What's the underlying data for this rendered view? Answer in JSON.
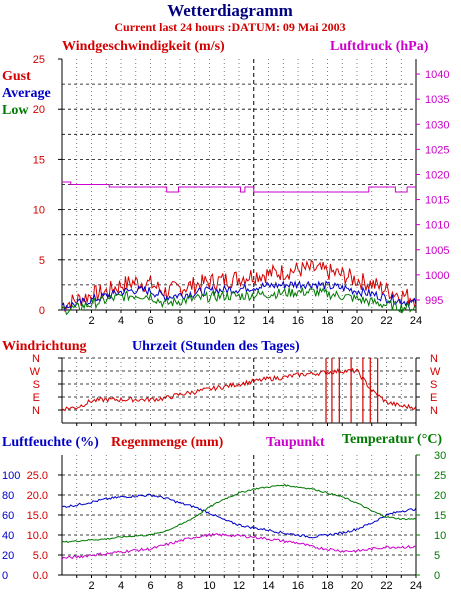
{
  "title": "Wetterdiagramm",
  "subtitle": "Current last 24 hours :DATUM: 09 Mai 2003",
  "colors": {
    "red": "#d40000",
    "blue": "#0000c8",
    "green": "#007a00",
    "magenta": "#cc00cc",
    "navy": "#000080",
    "black": "#000000"
  },
  "chart_data": [
    {
      "type": "line",
      "title": "",
      "left_axis_label": "Windgeschwindigkeit (m/s)",
      "right_axis_label": "Luftdruck (hPa)",
      "ylim": [
        0,
        25
      ],
      "yticks": [
        0,
        5,
        10,
        15,
        20,
        25
      ],
      "y2lim": [
        993,
        1043
      ],
      "y2ticks": [
        995,
        1000,
        1005,
        1010,
        1015,
        1020,
        1025,
        1030,
        1035,
        1040
      ],
      "xlim": [
        0,
        24
      ],
      "xticks": [
        2,
        4,
        6,
        8,
        10,
        12,
        14,
        16,
        18,
        20,
        22,
        24
      ],
      "grid": true,
      "legend": [
        "Gust",
        "Average",
        "Low"
      ],
      "series": [
        {
          "name": "Gust",
          "color": "#d40000",
          "noise": 0.9,
          "x": [
            0,
            1,
            2,
            3,
            4,
            5,
            6,
            7,
            8,
            9,
            10,
            11,
            12,
            13,
            14,
            15,
            16,
            17,
            18,
            19,
            20,
            21,
            22,
            23,
            24
          ],
          "y": [
            0.5,
            1.0,
            1.5,
            1.8,
            2.5,
            2.8,
            2.6,
            1.8,
            2.2,
            2.5,
            2.8,
            3.0,
            3.2,
            3.5,
            3.6,
            3.8,
            4.0,
            4.1,
            3.8,
            3.5,
            3.0,
            2.6,
            2.0,
            1.5,
            1.2
          ]
        },
        {
          "name": "Average",
          "color": "#0000c8",
          "noise": 0.45,
          "x": [
            0,
            1,
            2,
            3,
            4,
            5,
            6,
            7,
            8,
            9,
            10,
            11,
            12,
            13,
            14,
            15,
            16,
            17,
            18,
            19,
            20,
            21,
            22,
            23,
            24
          ],
          "y": [
            0.3,
            0.6,
            1.0,
            1.4,
            1.8,
            2.0,
            1.9,
            1.3,
            1.5,
            1.7,
            1.9,
            2.0,
            2.1,
            2.3,
            2.4,
            2.5,
            2.6,
            2.6,
            2.4,
            2.2,
            1.9,
            1.6,
            1.2,
            0.9,
            0.7
          ]
        },
        {
          "name": "Low",
          "color": "#007a00",
          "noise": 0.5,
          "x": [
            0,
            1,
            2,
            3,
            4,
            5,
            6,
            7,
            8,
            9,
            10,
            11,
            12,
            13,
            14,
            15,
            16,
            17,
            18,
            19,
            20,
            21,
            22,
            23,
            24
          ],
          "y": [
            0.0,
            0.2,
            0.6,
            1.0,
            1.3,
            1.5,
            1.4,
            0.6,
            0.9,
            1.1,
            1.3,
            1.4,
            1.4,
            1.5,
            1.6,
            1.7,
            1.8,
            1.8,
            1.6,
            1.4,
            1.1,
            0.8,
            0.5,
            0.3,
            0.2
          ]
        },
        {
          "name": "Luftdruck",
          "axis": "right",
          "color": "#cc00cc",
          "step": true,
          "x": [
            0,
            0.6,
            0.6,
            3.2,
            3.2,
            7.1,
            7.1,
            7.9,
            7.9,
            12.1,
            12.1,
            12.4,
            12.4,
            13.0,
            13.0,
            20.8,
            20.8,
            22.6,
            22.6,
            23.4,
            23.4,
            24
          ],
          "y": [
            1018.5,
            1018.5,
            1018.0,
            1018.0,
            1017.5,
            1017.5,
            1016.5,
            1016.5,
            1017.5,
            1017.5,
            1016.5,
            1016.5,
            1017.5,
            1017.5,
            1016.5,
            1016.5,
            1017.5,
            1017.5,
            1016.5,
            1016.5,
            1017.5,
            1017.5
          ]
        }
      ]
    },
    {
      "type": "line",
      "title": "",
      "left_axis_label": "Windrichtung",
      "xlabel": "Uhrzeit (Stunden des Tages)",
      "ylim": [
        0,
        5
      ],
      "y_categories": [
        "N",
        "W",
        "S",
        "E",
        "N"
      ],
      "xlim": [
        0,
        24
      ],
      "grid": true,
      "series": [
        {
          "name": "Windrichtung",
          "color": "#d40000",
          "noise": 0.18,
          "x": [
            0,
            1,
            2,
            3,
            4,
            5,
            6,
            7,
            8,
            9,
            10,
            11,
            12,
            13,
            14,
            15,
            16,
            17,
            18,
            19,
            20,
            21,
            22,
            23,
            24
          ],
          "y": [
            1.1,
            1.2,
            1.7,
            1.8,
            1.8,
            1.8,
            1.8,
            1.9,
            2.2,
            2.4,
            2.6,
            2.8,
            3.0,
            3.2,
            3.4,
            3.5,
            3.7,
            3.8,
            3.9,
            4.0,
            4.0,
            2.5,
            1.6,
            1.3,
            1.2
          ],
          "spikes": [
            17.9,
            18.3,
            18.8,
            19.6,
            20.4,
            20.9,
            21.4
          ]
        }
      ]
    },
    {
      "type": "line",
      "title": "",
      "left_axis_labels": [
        "Luftfeuchte (%)",
        "Regenmenge (mm)",
        "Taupunkt"
      ],
      "right_axis_label": "Temperatur (°C)",
      "ylim": [
        0,
        120
      ],
      "yticks": [
        0,
        20,
        40,
        60,
        80,
        100
      ],
      "y2lim": [
        0,
        30
      ],
      "y2ticks": [
        0,
        5,
        10,
        15,
        20,
        25,
        30
      ],
      "rain_ticks": [
        "0.0",
        "5.0",
        "10.0",
        "15.0",
        "20.0",
        "25.0"
      ],
      "xlim": [
        0,
        24
      ],
      "xticks": [
        2,
        4,
        6,
        8,
        10,
        12,
        14,
        16,
        18,
        20,
        22,
        24
      ],
      "grid": true,
      "series": [
        {
          "name": "Luftfeuchte",
          "color": "#0000c8",
          "noise": 1.2,
          "x": [
            0,
            1,
            2,
            3,
            4,
            5,
            6,
            7,
            8,
            9,
            10,
            11,
            12,
            13,
            14,
            15,
            16,
            17,
            18,
            19,
            20,
            21,
            22,
            23,
            24
          ],
          "y": [
            68,
            70,
            73,
            76,
            78,
            79,
            80,
            77,
            72,
            68,
            62,
            55,
            50,
            47,
            45,
            42,
            40,
            38,
            40,
            42,
            46,
            52,
            60,
            64,
            66
          ]
        },
        {
          "name": "Temperatur",
          "axis": "right",
          "color": "#007a00",
          "noise": 0.2,
          "x": [
            0,
            1,
            2,
            3,
            4,
            5,
            6,
            7,
            8,
            9,
            10,
            11,
            12,
            13,
            14,
            15,
            16,
            17,
            18,
            19,
            20,
            21,
            22,
            23,
            24
          ],
          "y": [
            8.2,
            8.5,
            8.8,
            9.0,
            9.5,
            9.8,
            10.0,
            11.0,
            12.5,
            14.5,
            17.0,
            19.0,
            20.5,
            21.5,
            22.0,
            22.5,
            22.0,
            21.5,
            20.5,
            19.5,
            18.0,
            16.0,
            14.5,
            14.0,
            14.0
          ]
        },
        {
          "name": "Taupunkt",
          "axis": "right",
          "color": "#cc00cc",
          "noise": 0.35,
          "x": [
            0,
            1,
            2,
            3,
            4,
            5,
            6,
            7,
            8,
            9,
            10,
            11,
            12,
            13,
            14,
            15,
            16,
            17,
            18,
            19,
            20,
            21,
            22,
            23,
            24
          ],
          "y": [
            4.2,
            4.5,
            5.0,
            5.3,
            5.8,
            6.2,
            6.5,
            7.5,
            8.5,
            9.5,
            10.0,
            10.0,
            9.8,
            9.5,
            9.0,
            8.5,
            8.0,
            7.0,
            6.5,
            6.0,
            6.0,
            6.5,
            7.0,
            7.0,
            7.0
          ]
        }
      ]
    }
  ]
}
